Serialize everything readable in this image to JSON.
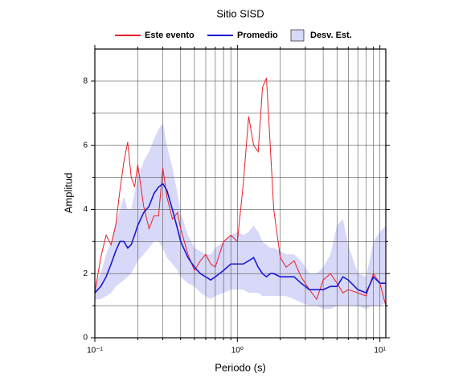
{
  "chart_data": {
    "type": "line",
    "title": "Sitio SISD",
    "xlabel": "Periodo (s)",
    "ylabel": "Amplitud",
    "xscale": "log",
    "xlim": [
      0.1,
      11
    ],
    "ylim": [
      0,
      9
    ],
    "xticks": [
      {
        "value": 0.1,
        "label": "10⁻¹"
      },
      {
        "value": 1,
        "label": "10⁰"
      },
      {
        "value": 10,
        "label": "10¹"
      }
    ],
    "xminor": [
      0.2,
      0.3,
      0.4,
      0.5,
      0.6,
      0.7,
      0.8,
      0.9,
      2,
      3,
      4,
      5,
      6,
      7,
      8,
      9
    ],
    "yticks": [
      0,
      2,
      4,
      6,
      8
    ],
    "yminor": [
      1,
      3,
      5,
      7
    ],
    "grid": true,
    "legend": "top",
    "x": [
      0.1,
      0.11,
      0.12,
      0.13,
      0.14,
      0.15,
      0.16,
      0.17,
      0.18,
      0.19,
      0.2,
      0.22,
      0.24,
      0.26,
      0.28,
      0.3,
      0.32,
      0.35,
      0.38,
      0.4,
      0.45,
      0.5,
      0.55,
      0.6,
      0.65,
      0.7,
      0.8,
      0.9,
      1.0,
      1.1,
      1.2,
      1.3,
      1.4,
      1.5,
      1.6,
      1.7,
      1.8,
      2.0,
      2.2,
      2.5,
      2.8,
      3.2,
      3.6,
      4,
      4.5,
      5,
      5.5,
      6,
      7,
      8,
      9,
      10,
      11
    ],
    "series": [
      {
        "name": "Este evento",
        "color": "#e8202a",
        "values": [
          1.4,
          2.5,
          3.2,
          2.9,
          3.5,
          4.6,
          5.5,
          6.1,
          5.0,
          4.7,
          5.4,
          4.1,
          3.4,
          3.8,
          3.8,
          5.3,
          4.4,
          3.7,
          3.9,
          3.4,
          2.6,
          2.1,
          2.4,
          2.6,
          2.3,
          2.2,
          3.0,
          3.2,
          3.0,
          4.8,
          6.9,
          6.0,
          5.8,
          7.8,
          8.1,
          6.0,
          4.0,
          2.5,
          2.2,
          2.4,
          1.9,
          1.5,
          1.2,
          1.8,
          2.0,
          1.7,
          1.4,
          1.5,
          1.4,
          1.3,
          2.0,
          1.7,
          1.0
        ]
      },
      {
        "name": "Promedio",
        "color": "#1a1ad0",
        "values": [
          1.4,
          1.6,
          1.9,
          2.3,
          2.7,
          3.0,
          3.0,
          2.8,
          2.9,
          3.2,
          3.5,
          3.9,
          4.1,
          4.5,
          4.7,
          4.8,
          4.6,
          4.0,
          3.4,
          3.0,
          2.5,
          2.2,
          2.0,
          1.9,
          1.8,
          1.9,
          2.1,
          2.3,
          2.3,
          2.3,
          2.4,
          2.5,
          2.2,
          2.0,
          1.9,
          2.0,
          2.0,
          1.9,
          1.9,
          1.9,
          1.7,
          1.5,
          1.5,
          1.5,
          1.6,
          1.6,
          1.9,
          1.8,
          1.5,
          1.4,
          1.9,
          1.7,
          1.7
        ]
      },
      {
        "name": "Desv. Est.",
        "color": "#d8d8f8",
        "lower": [
          1.2,
          1.2,
          1.3,
          1.4,
          1.6,
          1.7,
          1.8,
          1.9,
          2.0,
          2.2,
          2.4,
          2.6,
          2.8,
          3.0,
          3.0,
          2.8,
          2.5,
          2.3,
          2.1,
          1.9,
          1.7,
          1.6,
          1.4,
          1.3,
          1.2,
          1.3,
          1.4,
          1.5,
          1.5,
          1.5,
          1.4,
          1.4,
          1.4,
          1.3,
          1.3,
          1.3,
          1.3,
          1.3,
          1.3,
          1.2,
          1.1,
          1.0,
          1.0,
          0.9,
          0.9,
          1.0,
          1.0,
          1.0,
          1.0,
          0.9,
          1.0,
          1.0,
          1.1
        ],
        "upper": [
          1.7,
          2.0,
          2.6,
          3.0,
          3.6,
          4.0,
          4.4,
          4.0,
          4.0,
          4.5,
          5.0,
          5.5,
          5.8,
          6.2,
          6.5,
          6.7,
          6.0,
          5.3,
          4.5,
          3.9,
          3.2,
          2.8,
          2.7,
          2.6,
          2.6,
          2.8,
          3.0,
          3.2,
          3.3,
          3.2,
          3.3,
          3.5,
          3.3,
          3.0,
          2.9,
          2.8,
          2.8,
          2.7,
          2.6,
          2.6,
          2.4,
          2.0,
          2.0,
          2.2,
          2.6,
          3.5,
          3.7,
          2.9,
          2.0,
          1.9,
          3.0,
          3.3,
          3.5
        ]
      }
    ]
  }
}
